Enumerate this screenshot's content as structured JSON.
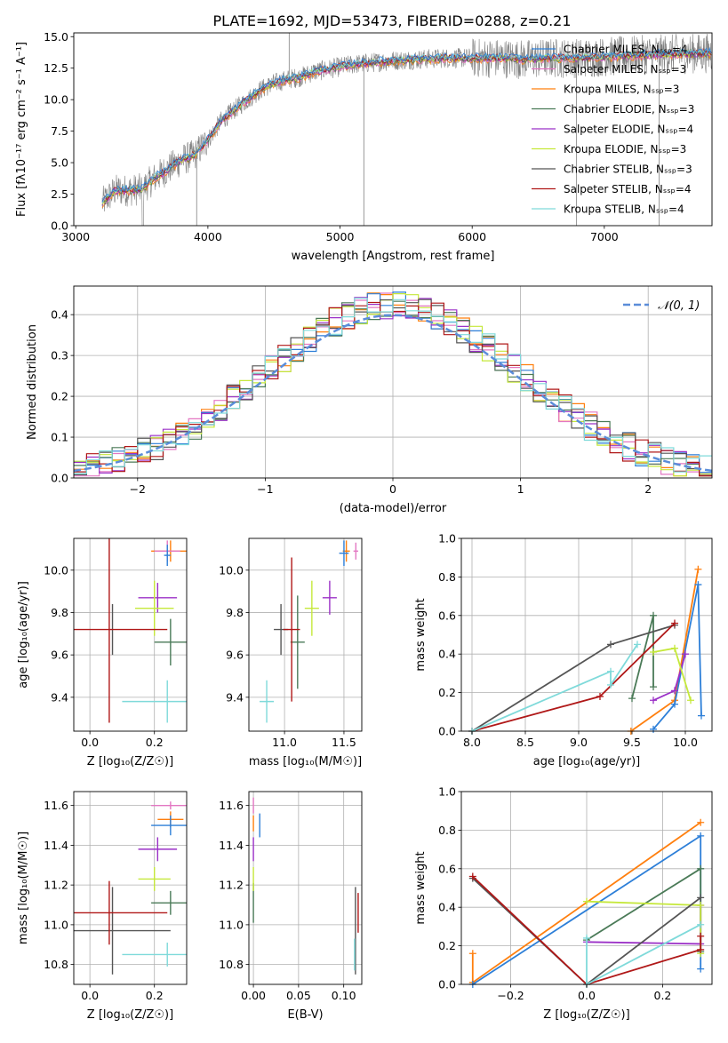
{
  "figure": {
    "title": "PLATE=1692, MJD=53473, FIBERID=0288, z=0.21"
  },
  "palette": [
    "#ff7f0e",
    "#e377c2",
    "#2d7fd8",
    "#4a7a57",
    "#9b30c7",
    "#c5e83a",
    "#555555",
    "#b01818",
    "#7fdada"
  ],
  "chart_data": [
    {
      "id": "spectrum",
      "type": "line",
      "xlabel": "wavelength [Angstrom, rest frame]",
      "ylabel": "Flux [fλ10⁻¹⁷ erg cm⁻² s⁻¹ A⁻¹]",
      "xlim": [
        2985,
        7815
      ],
      "ylim": [
        0,
        15.3
      ],
      "xticks": [
        3000,
        4000,
        5000,
        6000,
        7000
      ],
      "yticks": [
        0.0,
        2.5,
        5.0,
        7.5,
        10.0,
        12.5,
        15.0
      ],
      "legend_position": "upper right",
      "legend": [
        "Chabrier MILES, Nₛₛₚ=4",
        "Salpeter MILES, Nₛₛₚ=3",
        "Kroupa MILES, Nₛₛₚ=3",
        "Chabrier ELODIE, Nₛₛₚ=3",
        "Salpeter ELODIE, Nₛₛₚ=4",
        "Kroupa ELODIE, Nₛₛₚ=3",
        "Chabrier STELIB, Nₛₛₚ=3",
        "Salpeter STELIB, Nₛₛₚ=4",
        "Kroupa STELIB, Nₛₛₚ=4"
      ],
      "legend_colors": [
        "#2d7fd8",
        "#e377c2",
        "#ff7f0e",
        "#4a7a57",
        "#9b30c7",
        "#c5e83a",
        "#555555",
        "#b01818",
        "#7fdada"
      ],
      "continuum": {
        "x": [
          3200,
          3300,
          3400,
          3500,
          3600,
          3700,
          3800,
          3900,
          4000,
          4100,
          4200,
          4300,
          4400,
          4500,
          4600,
          4700,
          4800,
          4900,
          5000,
          5100,
          5200,
          5400,
          5600,
          5800,
          6000,
          6200,
          6400,
          6600,
          6800,
          7000,
          7200,
          7400,
          7815
        ],
        "y": [
          1.8,
          2.8,
          2.8,
          2.9,
          3.8,
          4.5,
          5.2,
          5.6,
          6.8,
          8.3,
          9.2,
          10.0,
          10.8,
          11.3,
          11.6,
          11.8,
          12.2,
          12.4,
          12.6,
          12.8,
          12.9,
          13.1,
          13.2,
          13.3,
          13.3,
          13.3,
          13.2,
          13.3,
          13.3,
          13.4,
          13.5,
          13.6,
          13.7
        ]
      }
    },
    {
      "id": "residuals",
      "type": "histogram",
      "xlabel": "(data-model)/error",
      "ylabel": "Normed distribution",
      "xlim": [
        -2.5,
        2.5
      ],
      "ylim": [
        0,
        0.47
      ],
      "xticks": [
        -2,
        -1,
        0,
        1,
        2
      ],
      "yticks": [
        0.0,
        0.1,
        0.2,
        0.3,
        0.4
      ],
      "legend": "𝒩(0, 1)",
      "legend_position": "upper right",
      "bins": [
        -2.5,
        2.5,
        50
      ]
    },
    {
      "id": "age-vs-z",
      "type": "errorbar",
      "xlabel": "Z [log₁₀(Z/Z☉)]",
      "ylabel": "age  [log₁₀(age/yr)]",
      "xlim": [
        -0.05,
        0.3
      ],
      "ylim": [
        9.24,
        10.15
      ],
      "xticks": [
        0.0,
        0.2
      ],
      "yticks": [
        9.4,
        9.6,
        9.8,
        10.0
      ],
      "points": [
        {
          "x": 0.25,
          "y": 10.09,
          "xe": 0.06,
          "ye": 0.05,
          "c": 0
        },
        {
          "x": 0.24,
          "y": 10.09,
          "xe": 0.04,
          "ye": 0.05,
          "c": 1
        },
        {
          "x": 0.24,
          "y": 10.07,
          "xe": 0.01,
          "ye": 0.05,
          "c": 2
        },
        {
          "x": 0.25,
          "y": 9.66,
          "xe": 0.05,
          "ye": 0.11,
          "c": 3
        },
        {
          "x": 0.21,
          "y": 9.87,
          "xe": 0.06,
          "ye": 0.07,
          "c": 4
        },
        {
          "x": 0.2,
          "y": 9.82,
          "xe": 0.06,
          "ye": 0.13,
          "c": 5
        },
        {
          "x": 0.07,
          "y": 9.72,
          "xe": 0.0,
          "ye": 0.12,
          "c": 6
        },
        {
          "x": 0.06,
          "y": 9.72,
          "xe": 0.18,
          "ye": 0.44,
          "c": 7
        },
        {
          "x": 0.24,
          "y": 9.38,
          "xe": 0.14,
          "ye": 0.1,
          "c": 8
        }
      ]
    },
    {
      "id": "age-vs-mass",
      "type": "errorbar",
      "xlabel": "mass [log₁₀(M/M☉)]",
      "ylabel": "",
      "xlim": [
        10.7,
        11.65
      ],
      "ylim": [
        9.24,
        10.15
      ],
      "xticks": [
        11.0,
        11.5
      ],
      "yticks": [
        9.4,
        9.6,
        9.8,
        10.0
      ],
      "points": [
        {
          "x": 11.52,
          "y": 10.09,
          "xe": 0.03,
          "ye": 0.05,
          "c": 0
        },
        {
          "x": 11.6,
          "y": 10.09,
          "xe": 0.02,
          "ye": 0.04,
          "c": 1
        },
        {
          "x": 11.5,
          "y": 10.08,
          "xe": 0.04,
          "ye": 0.06,
          "c": 2
        },
        {
          "x": 11.11,
          "y": 9.66,
          "xe": 0.06,
          "ye": 0.22,
          "c": 3
        },
        {
          "x": 11.38,
          "y": 9.87,
          "xe": 0.06,
          "ye": 0.08,
          "c": 4
        },
        {
          "x": 11.23,
          "y": 9.82,
          "xe": 0.06,
          "ye": 0.13,
          "c": 5
        },
        {
          "x": 10.97,
          "y": 9.72,
          "xe": 0.06,
          "ye": 0.12,
          "c": 6
        },
        {
          "x": 11.06,
          "y": 9.72,
          "xe": 0.07,
          "ye": 0.34,
          "c": 7
        },
        {
          "x": 10.85,
          "y": 9.38,
          "xe": 0.06,
          "ye": 0.1,
          "c": 8
        }
      ]
    },
    {
      "id": "weight-vs-age",
      "type": "line",
      "xlabel": "age  [log₁₀(age/yr)]",
      "ylabel": "mass weight",
      "xlim": [
        7.9,
        10.25
      ],
      "ylim": [
        0,
        1.0
      ],
      "xticks": [
        8.0,
        8.5,
        9.0,
        9.5,
        10.0
      ],
      "yticks": [
        0.0,
        0.2,
        0.4,
        0.6,
        0.8,
        1.0
      ],
      "series": [
        {
          "c": 0,
          "x": [
            9.49,
            9.9,
            10.12
          ],
          "y": [
            0.0,
            0.16,
            0.84
          ]
        },
        {
          "c": 2,
          "x": [
            9.7,
            9.9,
            10.12,
            10.15
          ],
          "y": [
            0.01,
            0.14,
            0.76,
            0.08
          ]
        },
        {
          "c": 3,
          "x": [
            9.5,
            9.7,
            9.7
          ],
          "y": [
            0.17,
            0.6,
            0.23
          ]
        },
        {
          "c": 4,
          "x": [
            9.7,
            9.9,
            10.0
          ],
          "y": [
            0.16,
            0.21,
            0.4
          ]
        },
        {
          "c": 5,
          "x": [
            9.7,
            9.9,
            10.05
          ],
          "y": [
            0.41,
            0.43,
            0.16
          ]
        },
        {
          "c": 6,
          "x": [
            8.0,
            9.3,
            9.9
          ],
          "y": [
            0.0,
            0.45,
            0.55
          ]
        },
        {
          "c": 7,
          "x": [
            8.0,
            9.2,
            9.9
          ],
          "y": [
            0.0,
            0.18,
            0.56
          ]
        },
        {
          "c": 8,
          "x": [
            8.0,
            9.3,
            9.3,
            9.55
          ],
          "y": [
            0.0,
            0.31,
            0.24,
            0.45
          ]
        }
      ]
    },
    {
      "id": "mass-vs-z",
      "type": "errorbar",
      "xlabel": "Z [log₁₀(Z/Z☉)]",
      "ylabel": "mass [log₁₀(M/M☉)]",
      "xlim": [
        -0.05,
        0.3
      ],
      "ylim": [
        10.7,
        11.67
      ],
      "xticks": [
        0.0,
        0.2
      ],
      "yticks": [
        10.8,
        11.0,
        11.2,
        11.4,
        11.6
      ],
      "points": [
        {
          "x": 0.25,
          "y": 11.53,
          "xe": 0.04,
          "ye": 0.04,
          "c": 0
        },
        {
          "x": 0.25,
          "y": 11.6,
          "xe": 0.06,
          "ye": 0.02,
          "c": 1
        },
        {
          "x": 0.25,
          "y": 11.5,
          "xe": 0.06,
          "ye": 0.05,
          "c": 2
        },
        {
          "x": 0.25,
          "y": 11.11,
          "xe": 0.06,
          "ye": 0.06,
          "c": 3
        },
        {
          "x": 0.21,
          "y": 11.38,
          "xe": 0.06,
          "ye": 0.06,
          "c": 4
        },
        {
          "x": 0.2,
          "y": 11.23,
          "xe": 0.05,
          "ye": 0.06,
          "c": 5
        },
        {
          "x": 0.07,
          "y": 10.97,
          "xe": 0.18,
          "ye": 0.22,
          "c": 6
        },
        {
          "x": 0.06,
          "y": 11.06,
          "xe": 0.18,
          "ye": 0.16,
          "c": 7
        },
        {
          "x": 0.24,
          "y": 10.85,
          "xe": 0.14,
          "ye": 0.06,
          "c": 8
        }
      ]
    },
    {
      "id": "mass-vs-ebv",
      "type": "errorbar",
      "xlabel": "E(B-V)",
      "ylabel": "",
      "xlim": [
        -0.005,
        0.12
      ],
      "ylim": [
        10.7,
        11.67
      ],
      "xticks": [
        0.0,
        0.05,
        0.1
      ],
      "yticks": [
        10.8,
        11.0,
        11.2,
        11.4,
        11.6
      ],
      "points": [
        {
          "x": 0.0,
          "y": 11.51,
          "xe": 0.0,
          "ye": 0.04,
          "c": 0
        },
        {
          "x": 0.0,
          "y": 11.6,
          "xe": 0.0,
          "ye": 0.04,
          "c": 1
        },
        {
          "x": 0.007,
          "y": 11.5,
          "xe": 0.0,
          "ye": 0.06,
          "c": 2
        },
        {
          "x": 0.0,
          "y": 11.11,
          "xe": 0.0,
          "ye": 0.1,
          "c": 3
        },
        {
          "x": 0.0,
          "y": 11.38,
          "xe": 0.0,
          "ye": 0.06,
          "c": 4
        },
        {
          "x": 0.0,
          "y": 11.23,
          "xe": 0.0,
          "ye": 0.06,
          "c": 5
        },
        {
          "x": 0.113,
          "y": 10.97,
          "xe": 0.0,
          "ye": 0.22,
          "c": 6
        },
        {
          "x": 0.116,
          "y": 11.06,
          "xe": 0.0,
          "ye": 0.1,
          "c": 7
        },
        {
          "x": 0.112,
          "y": 10.85,
          "xe": 0.0,
          "ye": 0.08,
          "c": 8
        }
      ]
    },
    {
      "id": "weight-vs-z",
      "type": "line",
      "xlabel": "Z [log₁₀(Z/Z☉)]",
      "ylabel": "mass weight",
      "xlim": [
        -0.33,
        0.33
      ],
      "ylim": [
        0,
        1.0
      ],
      "xticks": [
        -0.2,
        0.0,
        0.2
      ],
      "yticks": [
        0.0,
        0.2,
        0.4,
        0.6,
        0.8,
        1.0
      ],
      "series": [
        {
          "c": 0,
          "x": [
            -0.3,
            -0.3,
            0.3
          ],
          "y": [
            0.16,
            0.01,
            0.84
          ]
        },
        {
          "c": 2,
          "x": [
            -0.3,
            0.3,
            0.3
          ],
          "y": [
            0.0,
            0.77,
            0.08
          ]
        },
        {
          "c": 3,
          "x": [
            0.0,
            0.3,
            0.3
          ],
          "y": [
            0.23,
            0.6,
            0.17
          ]
        },
        {
          "c": 4,
          "x": [
            0.0,
            0.3,
            0.3
          ],
          "y": [
            0.22,
            0.21,
            0.41
          ]
        },
        {
          "c": 5,
          "x": [
            0.0,
            0.3,
            0.3
          ],
          "y": [
            0.43,
            0.41,
            0.16
          ]
        },
        {
          "c": 6,
          "x": [
            -0.3,
            0.0,
            0.3
          ],
          "y": [
            0.55,
            0.0,
            0.45
          ]
        },
        {
          "c": 7,
          "x": [
            -0.3,
            0.0,
            0.3,
            0.3
          ],
          "y": [
            0.56,
            0.0,
            0.18,
            0.25
          ]
        },
        {
          "c": 8,
          "x": [
            0.0,
            0.0,
            0.3
          ],
          "y": [
            0.24,
            0.0,
            0.31
          ]
        }
      ]
    }
  ]
}
